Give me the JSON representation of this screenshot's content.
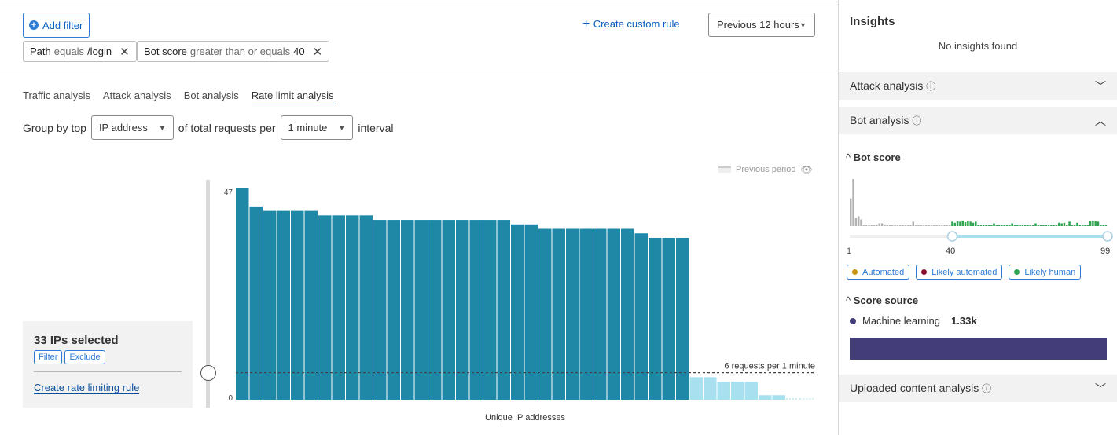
{
  "filters": {
    "add_filter": "Add filter",
    "chips": [
      {
        "field": "Path",
        "op": "equals",
        "value": "/login"
      },
      {
        "field": "Bot score",
        "op": "greater than or equals",
        "value": "40"
      }
    ]
  },
  "header": {
    "create_custom_rule": "Create custom rule",
    "period": "Previous 12 hours"
  },
  "tabs": [
    "Traffic analysis",
    "Attack analysis",
    "Bot analysis",
    "Rate limit analysis"
  ],
  "active_tab": "Rate limit analysis",
  "group": {
    "prefix": "Group by top",
    "group_value": "IP address",
    "middle": "of total requests per",
    "interval_value": "1 minute",
    "suffix": "interval"
  },
  "chart_data": {
    "type": "bar",
    "xlabel": "Unique IP addresses",
    "ylim": [
      0,
      47
    ],
    "yticks": [
      "0",
      "47"
    ],
    "legend": "Previous period",
    "threshold": {
      "value": 6,
      "label": "6 requests per 1 minute"
    },
    "values": [
      47,
      43,
      42,
      42,
      42,
      42,
      41,
      41,
      41,
      41,
      40,
      40,
      40,
      40,
      40,
      40,
      40,
      40,
      40,
      40,
      39,
      39,
      38,
      38,
      38,
      38,
      38,
      38,
      38,
      37,
      36,
      36,
      36,
      5,
      5,
      4,
      4,
      4,
      1,
      1,
      0,
      0
    ],
    "selected_count": 33,
    "colors": {
      "selected": "#1e88a6",
      "unselected": "#a9e0ef"
    }
  },
  "selection": {
    "title": "33 IPs selected",
    "filter": "Filter",
    "exclude": "Exclude",
    "create_rule": "Create rate limiting rule"
  },
  "insights": {
    "title": "Insights",
    "empty": "No insights found",
    "attack": "Attack analysis",
    "bot": "Bot analysis",
    "uploaded": "Uploaded content analysis",
    "bot_score": {
      "title": "Bot score",
      "range": [
        40,
        99
      ],
      "min_label": "1",
      "low_label": "40",
      "max_label": "99",
      "histogram": [
        50,
        85,
        15,
        18,
        12,
        1,
        1,
        1,
        1,
        1,
        3,
        5,
        5,
        3,
        1,
        1,
        1,
        1,
        1,
        1,
        1,
        1,
        1,
        1,
        8,
        1,
        1,
        1,
        1,
        1,
        1,
        1,
        1,
        1,
        1,
        1,
        1,
        1,
        1,
        8,
        6,
        9,
        8,
        10,
        7,
        9,
        8,
        6,
        8,
        1,
        1,
        1,
        1,
        1,
        1,
        5,
        1,
        1,
        1,
        1,
        1,
        1,
        5,
        1,
        1,
        1,
        1,
        1,
        1,
        1,
        1,
        5,
        1,
        1,
        1,
        1,
        1,
        1,
        1,
        1,
        6,
        5,
        6,
        1,
        8,
        1,
        1,
        6,
        1,
        1,
        1,
        1,
        9,
        10,
        9,
        8,
        1,
        1,
        1
      ],
      "legend": [
        {
          "label": "Automated",
          "color": "#c8920f"
        },
        {
          "label": "Likely automated",
          "color": "#8a0f2e"
        },
        {
          "label": "Likely human",
          "color": "#2ea44f"
        }
      ]
    },
    "score_source": {
      "title": "Score source",
      "items": [
        {
          "label": "Machine learning",
          "value": "1.33k",
          "color": "#433d7a"
        }
      ]
    }
  }
}
